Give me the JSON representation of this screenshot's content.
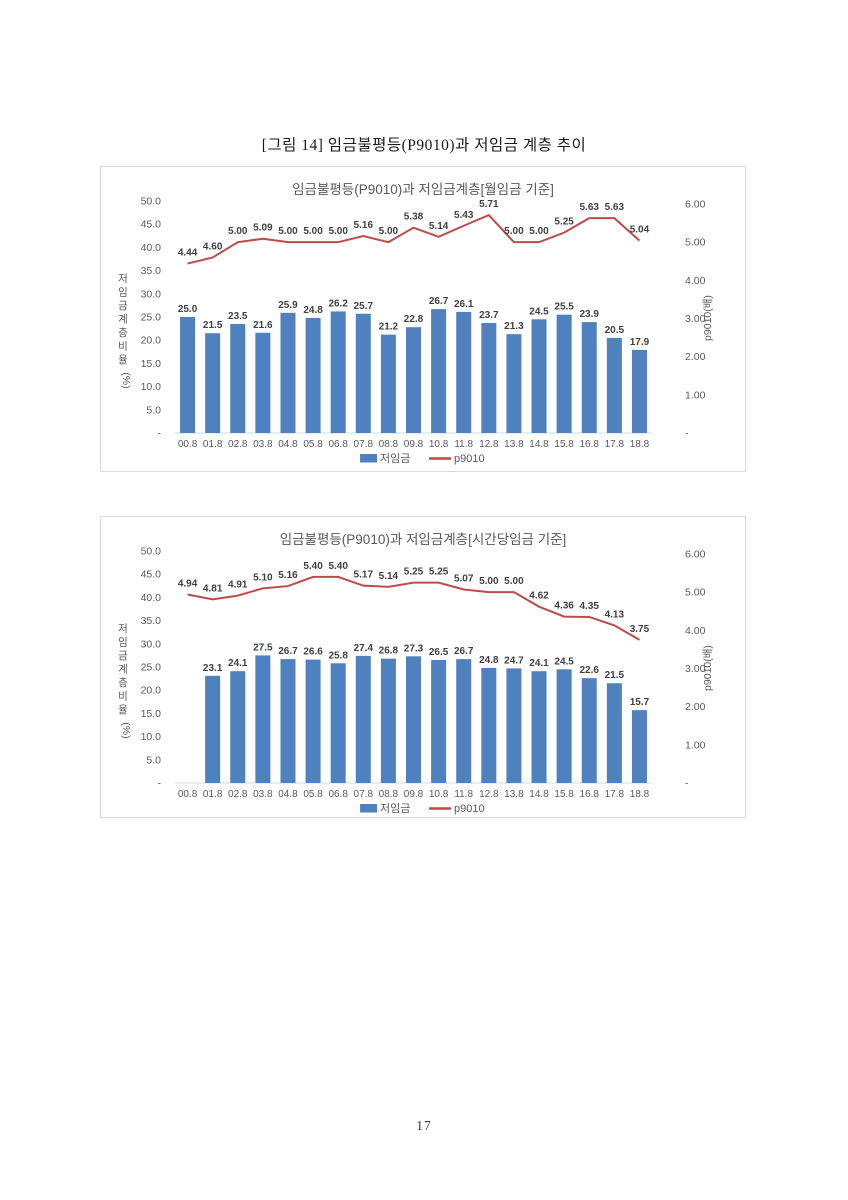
{
  "page": {
    "caption": "[그림 14] 임금불평등(P9010)과 저임금 계층 추이",
    "page_number": "17"
  },
  "colors": {
    "bar": "#4e81bd",
    "line": "#be4b48",
    "axis_text": "#595959",
    "label_text": "#404040",
    "title_text": "#595959",
    "axis_line": "#d9d9d9",
    "border": "#d9d9d9"
  },
  "chart_data": [
    {
      "type": "bar",
      "combo": "bar+line",
      "title": "임금불평등(P9010)과 저임금계층[월임금 기준]",
      "categories": [
        "00.8",
        "01.8",
        "02.8",
        "03.8",
        "04.8",
        "05.8",
        "06.8",
        "07.8",
        "08.8",
        "09.8",
        "10.8",
        "11.8",
        "12.8",
        "13.8",
        "14.8",
        "15.8",
        "16.8",
        "17.8",
        "18.8"
      ],
      "series": [
        {
          "name": "저임금",
          "kind": "bar",
          "axis": "left",
          "values": [
            25.0,
            21.5,
            23.5,
            21.6,
            25.9,
            24.8,
            26.2,
            25.7,
            21.2,
            22.8,
            26.7,
            26.1,
            23.7,
            21.3,
            24.5,
            25.5,
            23.9,
            20.5,
            17.9
          ]
        },
        {
          "name": "p9010",
          "kind": "line",
          "axis": "right",
          "values": [
            4.44,
            4.6,
            5.0,
            5.09,
            5.0,
            5.0,
            5.0,
            5.16,
            5.0,
            5.38,
            5.14,
            5.43,
            5.71,
            5.0,
            5.0,
            5.25,
            5.63,
            5.63,
            5.04
          ]
        }
      ],
      "left_axis": {
        "title": "저임금계층비율(%)",
        "max": 50,
        "ticks": [
          "50.0",
          "45.0",
          "40.0",
          "35.0",
          "30.0",
          "25.0",
          "20.0",
          "15.0",
          "10.0",
          "5.0",
          "-"
        ]
      },
      "right_axis": {
        "title": "p9010(배)",
        "max": 6,
        "ticks": [
          "6.00",
          "5.00",
          "4.00",
          "3.00",
          "2.00",
          "1.00",
          "-"
        ]
      },
      "legend_position": "bottom",
      "grid": false
    },
    {
      "type": "bar",
      "combo": "bar+line",
      "title": "임금불평등(P9010)과 저임금계층[시간당임금 기준]",
      "categories": [
        "00.8",
        "01.8",
        "02.8",
        "03.8",
        "04.8",
        "05.8",
        "06.8",
        "07.8",
        "08.8",
        "09.8",
        "10.8",
        "11.8",
        "12.8",
        "13.8",
        "14.8",
        "15.8",
        "16.8",
        "17.8",
        "18.8"
      ],
      "series": [
        {
          "name": "저임금",
          "kind": "bar",
          "axis": "left",
          "values": [
            null,
            23.1,
            24.1,
            27.5,
            26.7,
            26.6,
            25.8,
            27.4,
            26.8,
            27.3,
            26.5,
            26.7,
            24.8,
            24.7,
            24.1,
            24.5,
            22.6,
            21.5,
            15.7
          ]
        },
        {
          "name": "p9010",
          "kind": "line",
          "axis": "right",
          "values": [
            4.94,
            4.81,
            4.91,
            5.1,
            5.16,
            5.4,
            5.4,
            5.17,
            5.14,
            5.25,
            5.25,
            5.07,
            5.0,
            5.0,
            4.62,
            4.36,
            4.35,
            4.13,
            3.75
          ]
        }
      ],
      "left_axis": {
        "title": "저임금계층비율(%)",
        "max": 50,
        "ticks": [
          "50.0",
          "45.0",
          "40.0",
          "35.0",
          "30.0",
          "25.0",
          "20.0",
          "15.0",
          "10.0",
          "5.0",
          "-"
        ]
      },
      "right_axis": {
        "title": "p9010(배)",
        "max": 6,
        "ticks": [
          "6.00",
          "5.00",
          "4.00",
          "3.00",
          "2.00",
          "1.00",
          "-"
        ]
      },
      "legend_position": "bottom",
      "grid": false
    }
  ]
}
